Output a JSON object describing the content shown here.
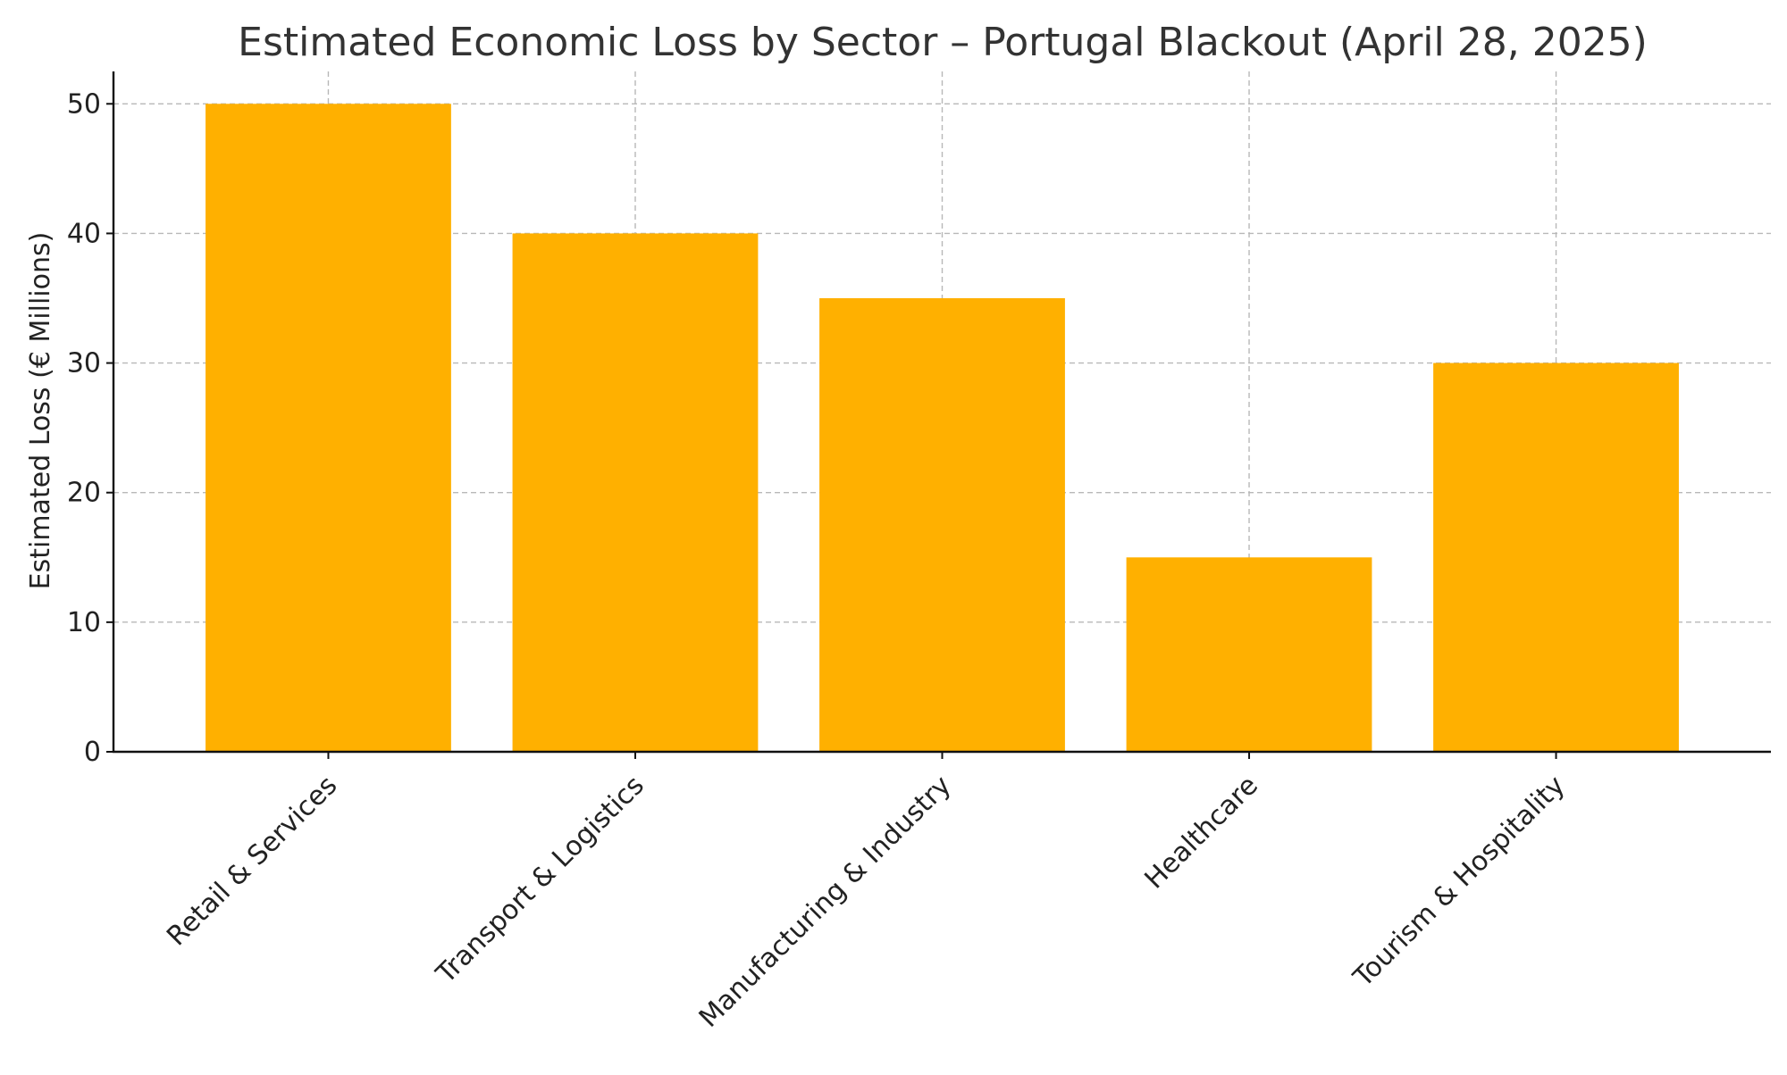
{
  "chart_data": {
    "type": "bar",
    "title": "Estimated Economic Loss by Sector – Portugal Blackout (April 28, 2025)",
    "xlabel": "",
    "ylabel": "Estimated Loss (€ Millions)",
    "categories": [
      "Retail & Services",
      "Transport & Logistics",
      "Manufacturing & Industry",
      "Healthcare",
      "Tourism & Hospitality"
    ],
    "values": [
      50,
      40,
      35,
      15,
      30
    ],
    "ylim": [
      0,
      52.5
    ],
    "yticks": [
      0,
      10,
      20,
      30,
      40,
      50
    ],
    "grid": true,
    "bar_color": "#FFB000",
    "x_tick_rotation_degrees": 45
  }
}
